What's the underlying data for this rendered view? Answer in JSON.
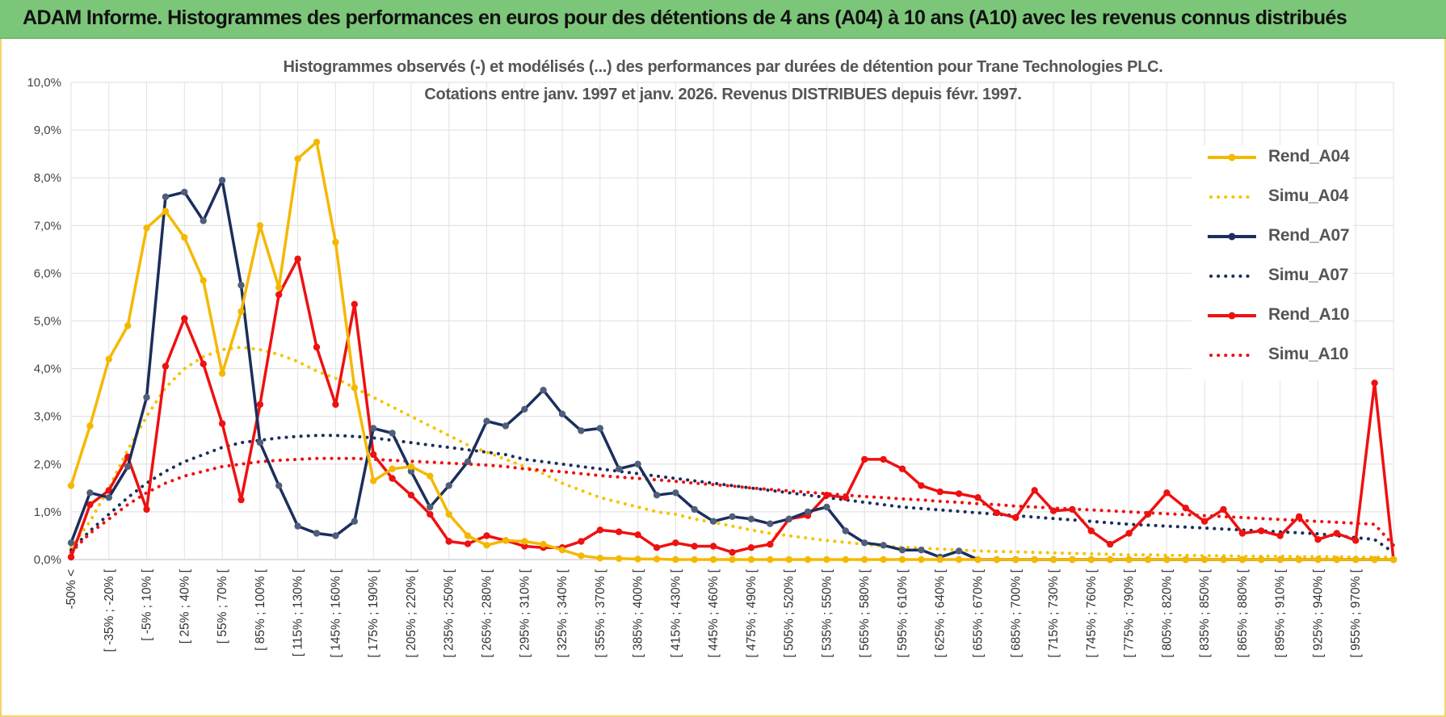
{
  "header": {
    "banner_title": "ADAM Informe. Histogrammes des performances en euros pour des détentions de 4 ans (A04) à 10 ans (A10) avec les revenus connus distribués"
  },
  "chart_data": {
    "type": "line",
    "title_line1": "Histogrammes observés (-) et modélisés (...) des performances par durées de détention pour Trane Technologies PLC.",
    "title_line2": "Cotations entre janv. 1997 et janv. 2026. Revenus DISTRIBUES depuis févr. 1997.",
    "ylim": [
      0,
      10
    ],
    "y_ticks": [
      "0,0%",
      "1,0%",
      "2,0%",
      "3,0%",
      "4,0%",
      "5,0%",
      "6,0%",
      "7,0%",
      "8,0%",
      "9,0%",
      "10,0%"
    ],
    "grid": true,
    "legend_position": "right",
    "x_tick_labels": [
      "-50% <",
      "[ -35% ; -20% [",
      "[ -5% ; 10% [",
      "[ 25% ; 40% [",
      "[ 55% ; 70% [",
      "[ 85% ; 100% [",
      "[ 115% ; 130% [",
      "[ 145% ; 160% [",
      "[ 175% ; 190% [",
      "[ 205% ; 220% [",
      "[ 235% ; 250% [",
      "[ 265% ; 280% [",
      "[ 295% ; 310% [",
      "[ 325% ; 340% [",
      "[ 355% ; 370% [",
      "[ 385% ; 400% [",
      "[ 415% ; 430% [",
      "[ 445% ; 460% [",
      "[ 475% ; 490% [",
      "[ 505% ; 520% [",
      "[ 535% ; 550% [",
      "[ 565% ; 580% [",
      "[ 595% ; 610% [",
      "[ 625% ; 640% [",
      "[ 655% ; 670% [",
      "[ 685% ; 700% [",
      "[ 715% ; 730% [",
      "[ 745% ; 760% [",
      "[ 775% ; 790% [",
      "[ 805% ; 820% [",
      "[ 835% ; 850% [",
      "[ 865% ; 880% [",
      "[ 895% ; 910% [",
      "[ 925% ; 940% [",
      "[ 955% ; 970% ["
    ],
    "series": [
      {
        "name": "Rend_A04",
        "style": "solid",
        "color": "#f5b800",
        "values": [
          1.55,
          2.8,
          4.2,
          4.9,
          6.95,
          7.3,
          6.75,
          5.85,
          3.9,
          5.2,
          7.0,
          5.7,
          8.4,
          8.75,
          6.65,
          3.6,
          1.65,
          1.9,
          1.95,
          1.75,
          0.95,
          0.5,
          0.3,
          0.4,
          0.38,
          0.32,
          0.2,
          0.08,
          0.03,
          0.02,
          0.01,
          0.01,
          0.0,
          0.0,
          0.0,
          0.0,
          0.0,
          0.0,
          0.0,
          0.0,
          0.0,
          0.0,
          0.0,
          0.0,
          0.0,
          0.0,
          0.0,
          0.0,
          0.0,
          0.0,
          0.0,
          0.0,
          0.0,
          0.0,
          0.0,
          0.0,
          0.0,
          0.0,
          0.0,
          0.0,
          0.0,
          0.0,
          0.0,
          0.0,
          0.0,
          0.0,
          0.0,
          0.0,
          0.0,
          0.0,
          0.0
        ]
      },
      {
        "name": "Simu_A04",
        "style": "dotted",
        "color": "#f5c400",
        "values": [
          0.25,
          0.8,
          1.5,
          2.3,
          3.0,
          3.6,
          4.0,
          4.25,
          4.4,
          4.45,
          4.4,
          4.3,
          4.15,
          3.95,
          3.8,
          3.6,
          3.4,
          3.2,
          3.0,
          2.8,
          2.6,
          2.4,
          2.25,
          2.1,
          1.95,
          1.8,
          1.6,
          1.45,
          1.3,
          1.2,
          1.1,
          1.0,
          0.95,
          0.85,
          0.78,
          0.7,
          0.62,
          0.55,
          0.5,
          0.45,
          0.4,
          0.36,
          0.32,
          0.28,
          0.26,
          0.24,
          0.22,
          0.2,
          0.18,
          0.17,
          0.16,
          0.15,
          0.14,
          0.13,
          0.12,
          0.11,
          0.1,
          0.1,
          0.09,
          0.09,
          0.08,
          0.08,
          0.07,
          0.07,
          0.07,
          0.06,
          0.06,
          0.06,
          0.05,
          0.05,
          0.05
        ]
      },
      {
        "name": "Rend_A07",
        "style": "solid",
        "color": "#1c2e5c",
        "values": [
          0.35,
          1.4,
          1.3,
          1.95,
          3.4,
          7.6,
          7.7,
          7.1,
          7.95,
          5.75,
          2.45,
          1.55,
          0.7,
          0.55,
          0.5,
          0.8,
          2.75,
          2.65,
          1.85,
          1.1,
          1.55,
          2.05,
          2.9,
          2.8,
          3.15,
          3.55,
          3.05,
          2.7,
          2.75,
          1.9,
          2.0,
          1.35,
          1.4,
          1.05,
          0.8,
          0.9,
          0.85,
          0.75,
          0.85,
          1.0,
          1.1,
          0.6,
          0.35,
          0.3,
          0.2,
          0.2,
          0.05,
          0.18,
          0.0,
          0.0,
          0.0,
          0.0,
          0.0,
          0.0,
          0.0,
          0.0,
          0.0,
          0.0,
          0.0,
          0.0,
          0.0,
          0.0,
          0.0,
          0.0,
          0.0,
          0.0,
          0.0,
          0.0,
          0.0,
          0.0,
          0.0
        ]
      },
      {
        "name": "Simu_A07",
        "style": "dotted",
        "color": "#1c2e5c",
        "values": [
          0.2,
          0.6,
          0.95,
          1.3,
          1.6,
          1.85,
          2.05,
          2.2,
          2.35,
          2.45,
          2.5,
          2.55,
          2.58,
          2.6,
          2.6,
          2.58,
          2.55,
          2.5,
          2.45,
          2.4,
          2.35,
          2.3,
          2.25,
          2.2,
          2.1,
          2.05,
          2.0,
          1.95,
          1.9,
          1.85,
          1.8,
          1.75,
          1.7,
          1.65,
          1.6,
          1.55,
          1.5,
          1.45,
          1.4,
          1.35,
          1.3,
          1.25,
          1.2,
          1.15,
          1.1,
          1.07,
          1.04,
          1.01,
          0.98,
          0.95,
          0.92,
          0.89,
          0.86,
          0.83,
          0.8,
          0.77,
          0.74,
          0.72,
          0.7,
          0.68,
          0.66,
          0.64,
          0.62,
          0.6,
          0.58,
          0.56,
          0.54,
          0.5,
          0.46,
          0.42,
          0.15
        ]
      },
      {
        "name": "Rend_A10",
        "style": "solid",
        "color": "#ee1111",
        "values": [
          0.05,
          1.15,
          1.45,
          2.15,
          1.05,
          4.05,
          5.05,
          4.1,
          2.85,
          1.25,
          3.25,
          5.55,
          6.3,
          4.45,
          3.25,
          5.35,
          2.2,
          1.7,
          1.35,
          0.95,
          0.38,
          0.33,
          0.5,
          0.4,
          0.28,
          0.25,
          0.25,
          0.38,
          0.62,
          0.58,
          0.52,
          0.25,
          0.35,
          0.28,
          0.28,
          0.15,
          0.25,
          0.32,
          0.85,
          0.92,
          1.35,
          1.3,
          2.1,
          2.1,
          1.9,
          1.55,
          1.42,
          1.38,
          1.3,
          0.98,
          0.88,
          1.45,
          1.02,
          1.05,
          0.6,
          0.32,
          0.55,
          0.95,
          1.4,
          1.08,
          0.8,
          1.05,
          0.55,
          0.6,
          0.5,
          0.9,
          0.42,
          0.55,
          0.4,
          3.7,
          0.0
        ]
      },
      {
        "name": "Simu_A10",
        "style": "dotted",
        "color": "#ee1111",
        "values": [
          0.15,
          0.55,
          0.85,
          1.15,
          1.4,
          1.6,
          1.75,
          1.85,
          1.95,
          2.0,
          2.05,
          2.08,
          2.1,
          2.12,
          2.12,
          2.12,
          2.1,
          2.08,
          2.06,
          2.04,
          2.02,
          2.0,
          1.98,
          1.95,
          1.9,
          1.87,
          1.84,
          1.8,
          1.76,
          1.73,
          1.7,
          1.67,
          1.64,
          1.6,
          1.57,
          1.54,
          1.5,
          1.47,
          1.44,
          1.41,
          1.38,
          1.35,
          1.32,
          1.3,
          1.27,
          1.25,
          1.22,
          1.2,
          1.17,
          1.15,
          1.12,
          1.1,
          1.08,
          1.06,
          1.04,
          1.02,
          1.0,
          0.98,
          0.96,
          0.94,
          0.92,
          0.9,
          0.88,
          0.86,
          0.84,
          0.82,
          0.8,
          0.78,
          0.76,
          0.74,
          0.3
        ]
      }
    ]
  }
}
